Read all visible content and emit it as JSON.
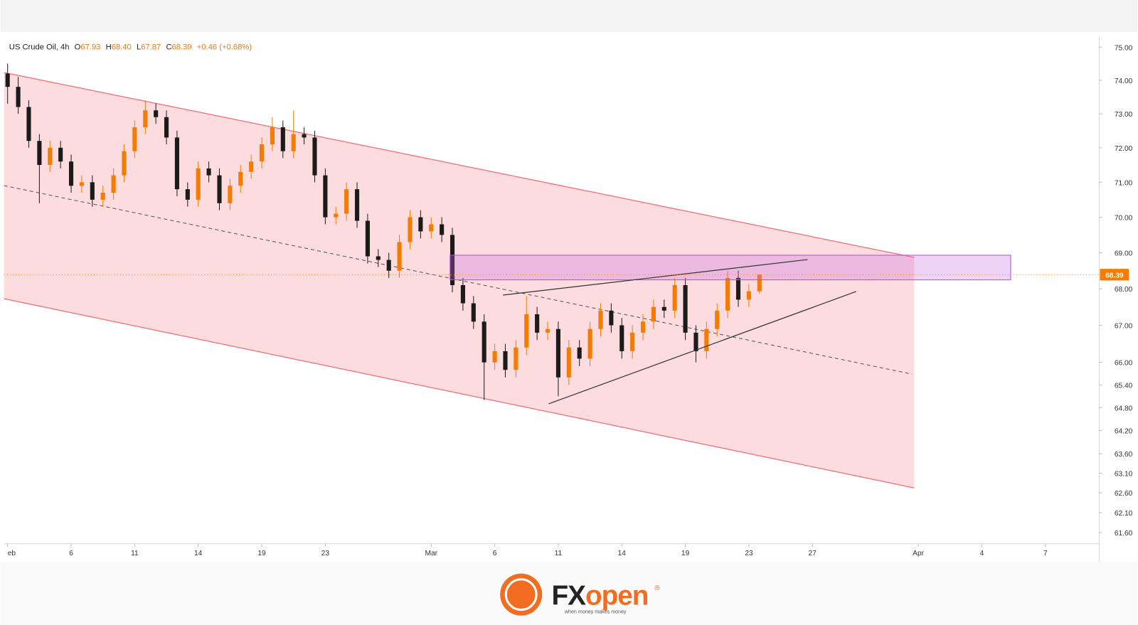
{
  "chart_data": {
    "type": "candlestick",
    "log": true,
    "header": {
      "symbol": "US Crude Oil, 4h",
      "o_label": "O",
      "o": "67.93",
      "h_label": "H",
      "h": "68.40",
      "l_label": "L",
      "l": "67.87",
      "c_label": "C",
      "c": "68.39",
      "change": "+0.46 (+0.68%)"
    },
    "last_price": {
      "value": 68.39,
      "label": "68.39"
    },
    "up_color": "#f57c00",
    "down_color": "#1b1b1b",
    "xlim": [
      -0.17,
      51.54
    ],
    "ylim": [
      61.32,
      75.33
    ],
    "xticks": [
      {
        "value": 0,
        "label": "eb"
      },
      {
        "value": 3,
        "label": "6"
      },
      {
        "value": 6,
        "label": "11"
      },
      {
        "value": 9,
        "label": "14"
      },
      {
        "value": 12,
        "label": "19"
      },
      {
        "value": 15,
        "label": "23"
      },
      {
        "value": 20,
        "label": "Mar"
      },
      {
        "value": 23,
        "label": "6"
      },
      {
        "value": 26,
        "label": "11"
      },
      {
        "value": 29,
        "label": "14"
      },
      {
        "value": 32,
        "label": "19"
      },
      {
        "value": 35,
        "label": "23"
      },
      {
        "value": 38,
        "label": "27"
      },
      {
        "value": 43,
        "label": "Apr"
      },
      {
        "value": 46,
        "label": "4"
      },
      {
        "value": 49,
        "label": "7"
      }
    ],
    "yticks": [
      {
        "value": 75,
        "label": "75.00"
      },
      {
        "value": 74,
        "label": "74.00"
      },
      {
        "value": 73,
        "label": "73.00"
      },
      {
        "value": 72,
        "label": "72.00"
      },
      {
        "value": 71,
        "label": "71.00"
      },
      {
        "value": 70,
        "label": "70.00"
      },
      {
        "value": 69,
        "label": "69.00"
      },
      {
        "value": 68,
        "label": "68.00"
      },
      {
        "value": 67,
        "label": "67.00"
      },
      {
        "value": 66,
        "label": "66.00"
      },
      {
        "value": 65.4,
        "label": "65.40"
      },
      {
        "value": 64.8,
        "label": "64.80"
      },
      {
        "value": 64.2,
        "label": "64.20"
      },
      {
        "value": 63.6,
        "label": "63.60"
      },
      {
        "value": 63.1,
        "label": "63.10"
      },
      {
        "value": 62.6,
        "label": "62.60"
      },
      {
        "value": 62.1,
        "label": "62.10"
      },
      {
        "value": 61.6,
        "label": "61.60"
      }
    ],
    "x": [
      0,
      0.5,
      1,
      1.5,
      2,
      2.5,
      3,
      3.5,
      4,
      4.5,
      5,
      5.5,
      6,
      6.5,
      7,
      7.5,
      8,
      8.5,
      9,
      9.5,
      10,
      10.5,
      11,
      11.5,
      12,
      12.5,
      13,
      13.5,
      14,
      14.5,
      15,
      15.5,
      16,
      16.5,
      17,
      17.5,
      18,
      18.5,
      19,
      19.5,
      20,
      20.5,
      21,
      21.5,
      22,
      22.5,
      23,
      23.5,
      24,
      24.5,
      25,
      25.5,
      26,
      26.5,
      27,
      27.5,
      28,
      28.5,
      29,
      29.5,
      30,
      30.5,
      31,
      31.5,
      32,
      32.5,
      33,
      33.5,
      34,
      34.5,
      35,
      35.5
    ],
    "open": [
      74.2,
      73.8,
      73.2,
      72.2,
      71.5,
      72.0,
      71.6,
      70.9,
      71.0,
      70.5,
      70.7,
      71.2,
      71.9,
      72.6,
      73.1,
      72.9,
      72.3,
      70.8,
      70.5,
      71.4,
      71.2,
      70.4,
      70.9,
      71.3,
      71.6,
      72.1,
      72.6,
      71.9,
      72.4,
      72.3,
      71.2,
      70.0,
      70.1,
      70.8,
      69.9,
      68.9,
      68.8,
      68.5,
      69.3,
      70.0,
      69.6,
      69.8,
      69.5,
      68.1,
      67.6,
      67.1,
      66.0,
      66.3,
      65.8,
      66.4,
      67.3,
      66.8,
      66.9,
      65.6,
      66.4,
      66.1,
      66.9,
      67.4,
      67.0,
      66.3,
      66.8,
      67.1,
      67.5,
      67.4,
      68.1,
      66.8,
      66.3,
      66.9,
      67.4,
      68.3,
      67.7,
      67.93
    ],
    "high": [
      74.5,
      74.1,
      73.4,
      72.4,
      72.2,
      72.2,
      71.8,
      71.2,
      71.2,
      70.9,
      71.4,
      72.1,
      72.8,
      73.4,
      73.3,
      73.1,
      72.5,
      71.0,
      71.6,
      71.6,
      71.4,
      71.1,
      71.5,
      71.8,
      72.3,
      72.9,
      72.8,
      73.1,
      72.6,
      72.5,
      71.4,
      70.3,
      71.0,
      71.0,
      70.1,
      69.1,
      69.0,
      69.5,
      70.2,
      70.2,
      70.0,
      70.0,
      69.7,
      68.3,
      67.8,
      67.3,
      66.5,
      66.5,
      66.6,
      67.8,
      67.5,
      67.1,
      67.1,
      66.6,
      66.6,
      67.1,
      67.6,
      67.6,
      67.2,
      67.0,
      67.3,
      67.7,
      67.7,
      68.3,
      68.3,
      67.0,
      67.1,
      67.6,
      68.5,
      68.5,
      68.13,
      68.4
    ],
    "low": [
      73.3,
      73.0,
      72.0,
      70.4,
      71.3,
      71.4,
      70.7,
      70.7,
      70.3,
      70.3,
      70.5,
      71.0,
      71.7,
      72.4,
      72.7,
      72.1,
      70.6,
      70.3,
      70.3,
      71.0,
      70.2,
      70.2,
      70.7,
      71.1,
      71.4,
      71.9,
      71.7,
      71.7,
      72.1,
      71.0,
      69.8,
      69.8,
      69.9,
      69.7,
      68.7,
      68.6,
      68.3,
      68.3,
      69.1,
      69.4,
      69.4,
      69.3,
      67.9,
      67.4,
      66.9,
      65.0,
      65.8,
      65.6,
      65.6,
      66.2,
      66.6,
      66.6,
      65.1,
      65.4,
      65.9,
      65.9,
      66.7,
      66.8,
      66.1,
      66.1,
      66.6,
      66.9,
      67.2,
      67.2,
      66.6,
      66.0,
      66.1,
      66.7,
      67.2,
      67.5,
      67.5,
      67.87
    ],
    "close": [
      73.8,
      73.2,
      72.2,
      71.5,
      72.0,
      71.6,
      70.9,
      71.0,
      70.5,
      70.7,
      71.2,
      71.9,
      72.6,
      73.1,
      72.9,
      72.3,
      70.8,
      70.5,
      71.4,
      71.2,
      70.4,
      70.9,
      71.3,
      71.6,
      72.1,
      72.6,
      71.9,
      72.4,
      72.3,
      71.2,
      70.0,
      70.1,
      70.8,
      69.9,
      68.9,
      68.8,
      68.5,
      69.3,
      70.0,
      69.6,
      69.8,
      69.5,
      68.1,
      67.6,
      67.1,
      66.0,
      66.3,
      65.8,
      66.4,
      67.3,
      66.8,
      66.9,
      65.6,
      66.4,
      66.1,
      66.9,
      67.4,
      67.0,
      66.3,
      66.8,
      67.1,
      67.5,
      67.4,
      68.1,
      66.8,
      66.3,
      66.9,
      67.4,
      68.3,
      67.7,
      67.93,
      68.39
    ]
  },
  "logo": {
    "brand_a": "FX",
    "brand_b": "open",
    "registered": "®",
    "tagline": "when money makes money"
  }
}
